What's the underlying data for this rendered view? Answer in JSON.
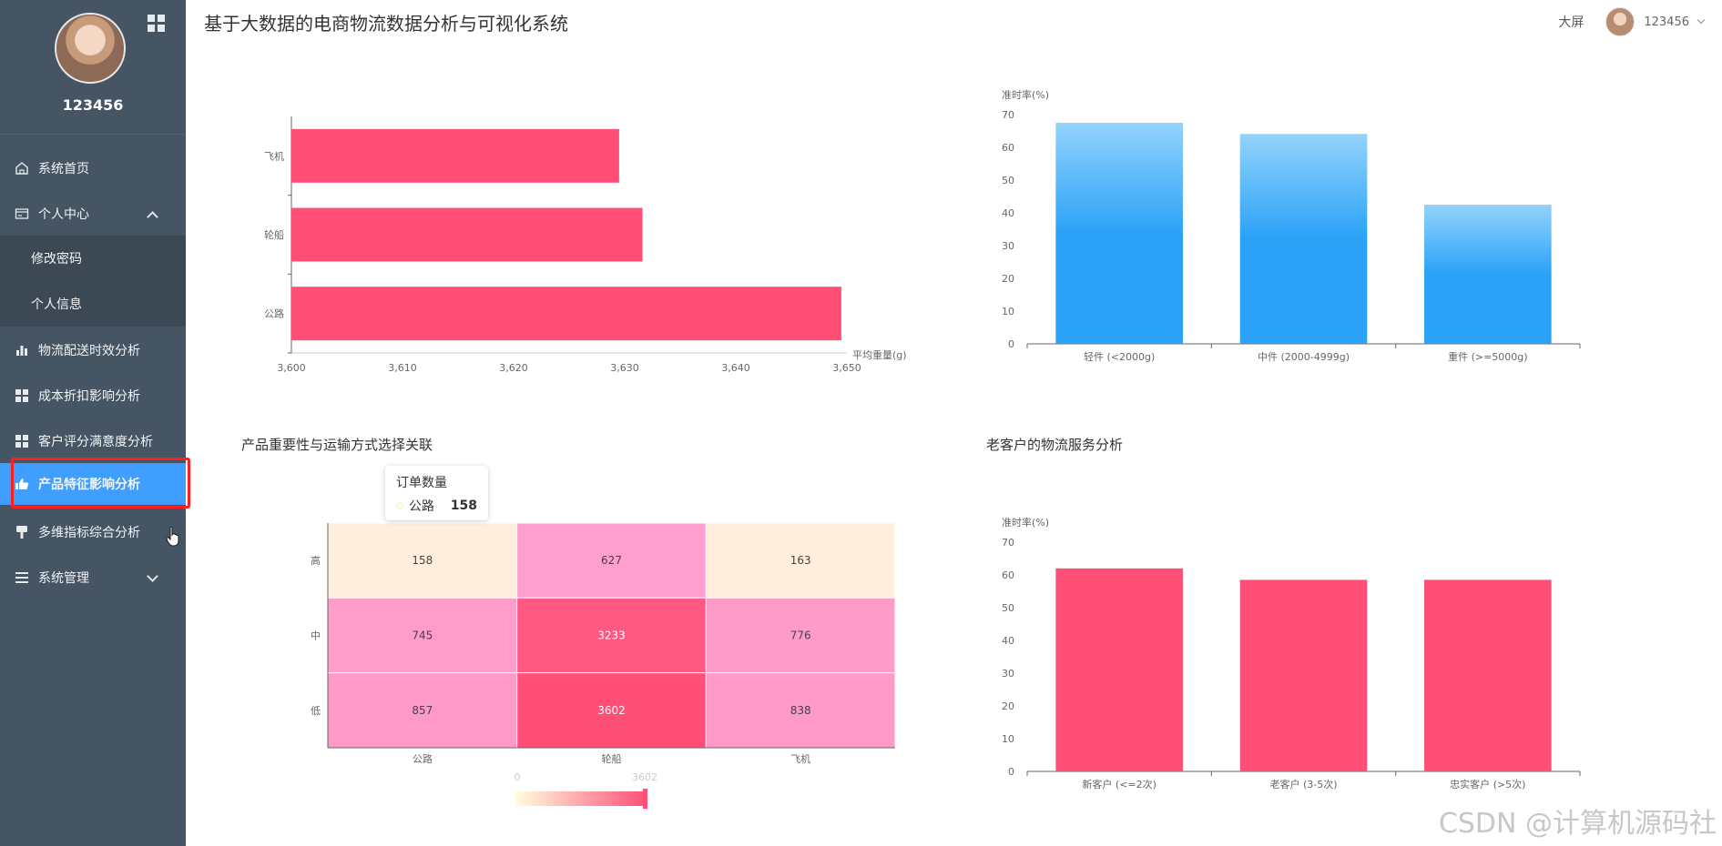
{
  "app": {
    "title": "基于大数据的电商物流数据分析与可视化系统",
    "big_screen_label": "大屏",
    "header_user": "123456"
  },
  "sidebar": {
    "username": "123456",
    "items": [
      {
        "label": "系统首页",
        "icon": "home-icon"
      },
      {
        "label": "个人中心",
        "icon": "id-card-icon"
      },
      {
        "label": "修改密码",
        "icon": ""
      },
      {
        "label": "个人信息",
        "icon": ""
      },
      {
        "label": "物流配送时效分析",
        "icon": "bar-chart-icon"
      },
      {
        "label": "成本折扣影响分析",
        "icon": "grid-icon"
      },
      {
        "label": "客户评分满意度分析",
        "icon": "grid-icon"
      },
      {
        "label": "产品特征影响分析",
        "icon": "thumbs-up-icon",
        "active": true
      },
      {
        "label": "多维指标综合分析",
        "icon": "brush-icon"
      },
      {
        "label": "系统管理",
        "icon": "list-icon"
      }
    ]
  },
  "colors": {
    "accent": "#409eff",
    "pink_bar": "#ff4f76",
    "blue_bar": "#2aa2f8",
    "sidebar": "#455564"
  },
  "watermark": "CSDN @计算机源码社",
  "tooltip": {
    "title": "订单数量",
    "label": "公路",
    "value": "158"
  },
  "chart_data": [
    {
      "type": "bar",
      "orientation": "horizontal",
      "categories": [
        "公路",
        "轮船",
        "飞机"
      ],
      "values": [
        3649.5,
        3631.6,
        3629.5
      ],
      "xlabel": "平均重量(g)",
      "xlim": [
        3600,
        3650
      ],
      "xticks": [
        "3,600",
        "3,610",
        "3,620",
        "3,630",
        "3,640",
        "3,650"
      ]
    },
    {
      "type": "bar",
      "categories": [
        "轻件 (<2000g)",
        "中件 (2000-4999g)",
        "重件 (>=5000g)"
      ],
      "values": [
        67.5,
        64.1,
        42.5
      ],
      "ylabel": "准时率(%)",
      "ylim": [
        0,
        70
      ],
      "yticks": [
        "0",
        "10",
        "20",
        "30",
        "40",
        "50",
        "60",
        "70"
      ]
    },
    {
      "type": "heatmap",
      "title": "产品重要性与运输方式选择关联",
      "x_categories": [
        "公路",
        "轮船",
        "飞机"
      ],
      "y_categories": [
        "高",
        "中",
        "低"
      ],
      "values": [
        [
          158,
          627,
          163
        ],
        [
          745,
          3233,
          776
        ],
        [
          857,
          3602,
          838
        ]
      ],
      "visualmap": {
        "min": "0",
        "max": "3602"
      }
    },
    {
      "type": "bar",
      "title": "老客户的物流服务分析",
      "categories": [
        "新客户 (<=2次)",
        "老客户 (3-5次)",
        "忠实客户 (>5次)"
      ],
      "values": [
        62.0,
        58.5,
        58.5
      ],
      "ylabel": "准时率(%)",
      "ylim": [
        0,
        70
      ],
      "yticks": [
        "0",
        "10",
        "20",
        "30",
        "40",
        "50",
        "60",
        "70"
      ]
    }
  ]
}
